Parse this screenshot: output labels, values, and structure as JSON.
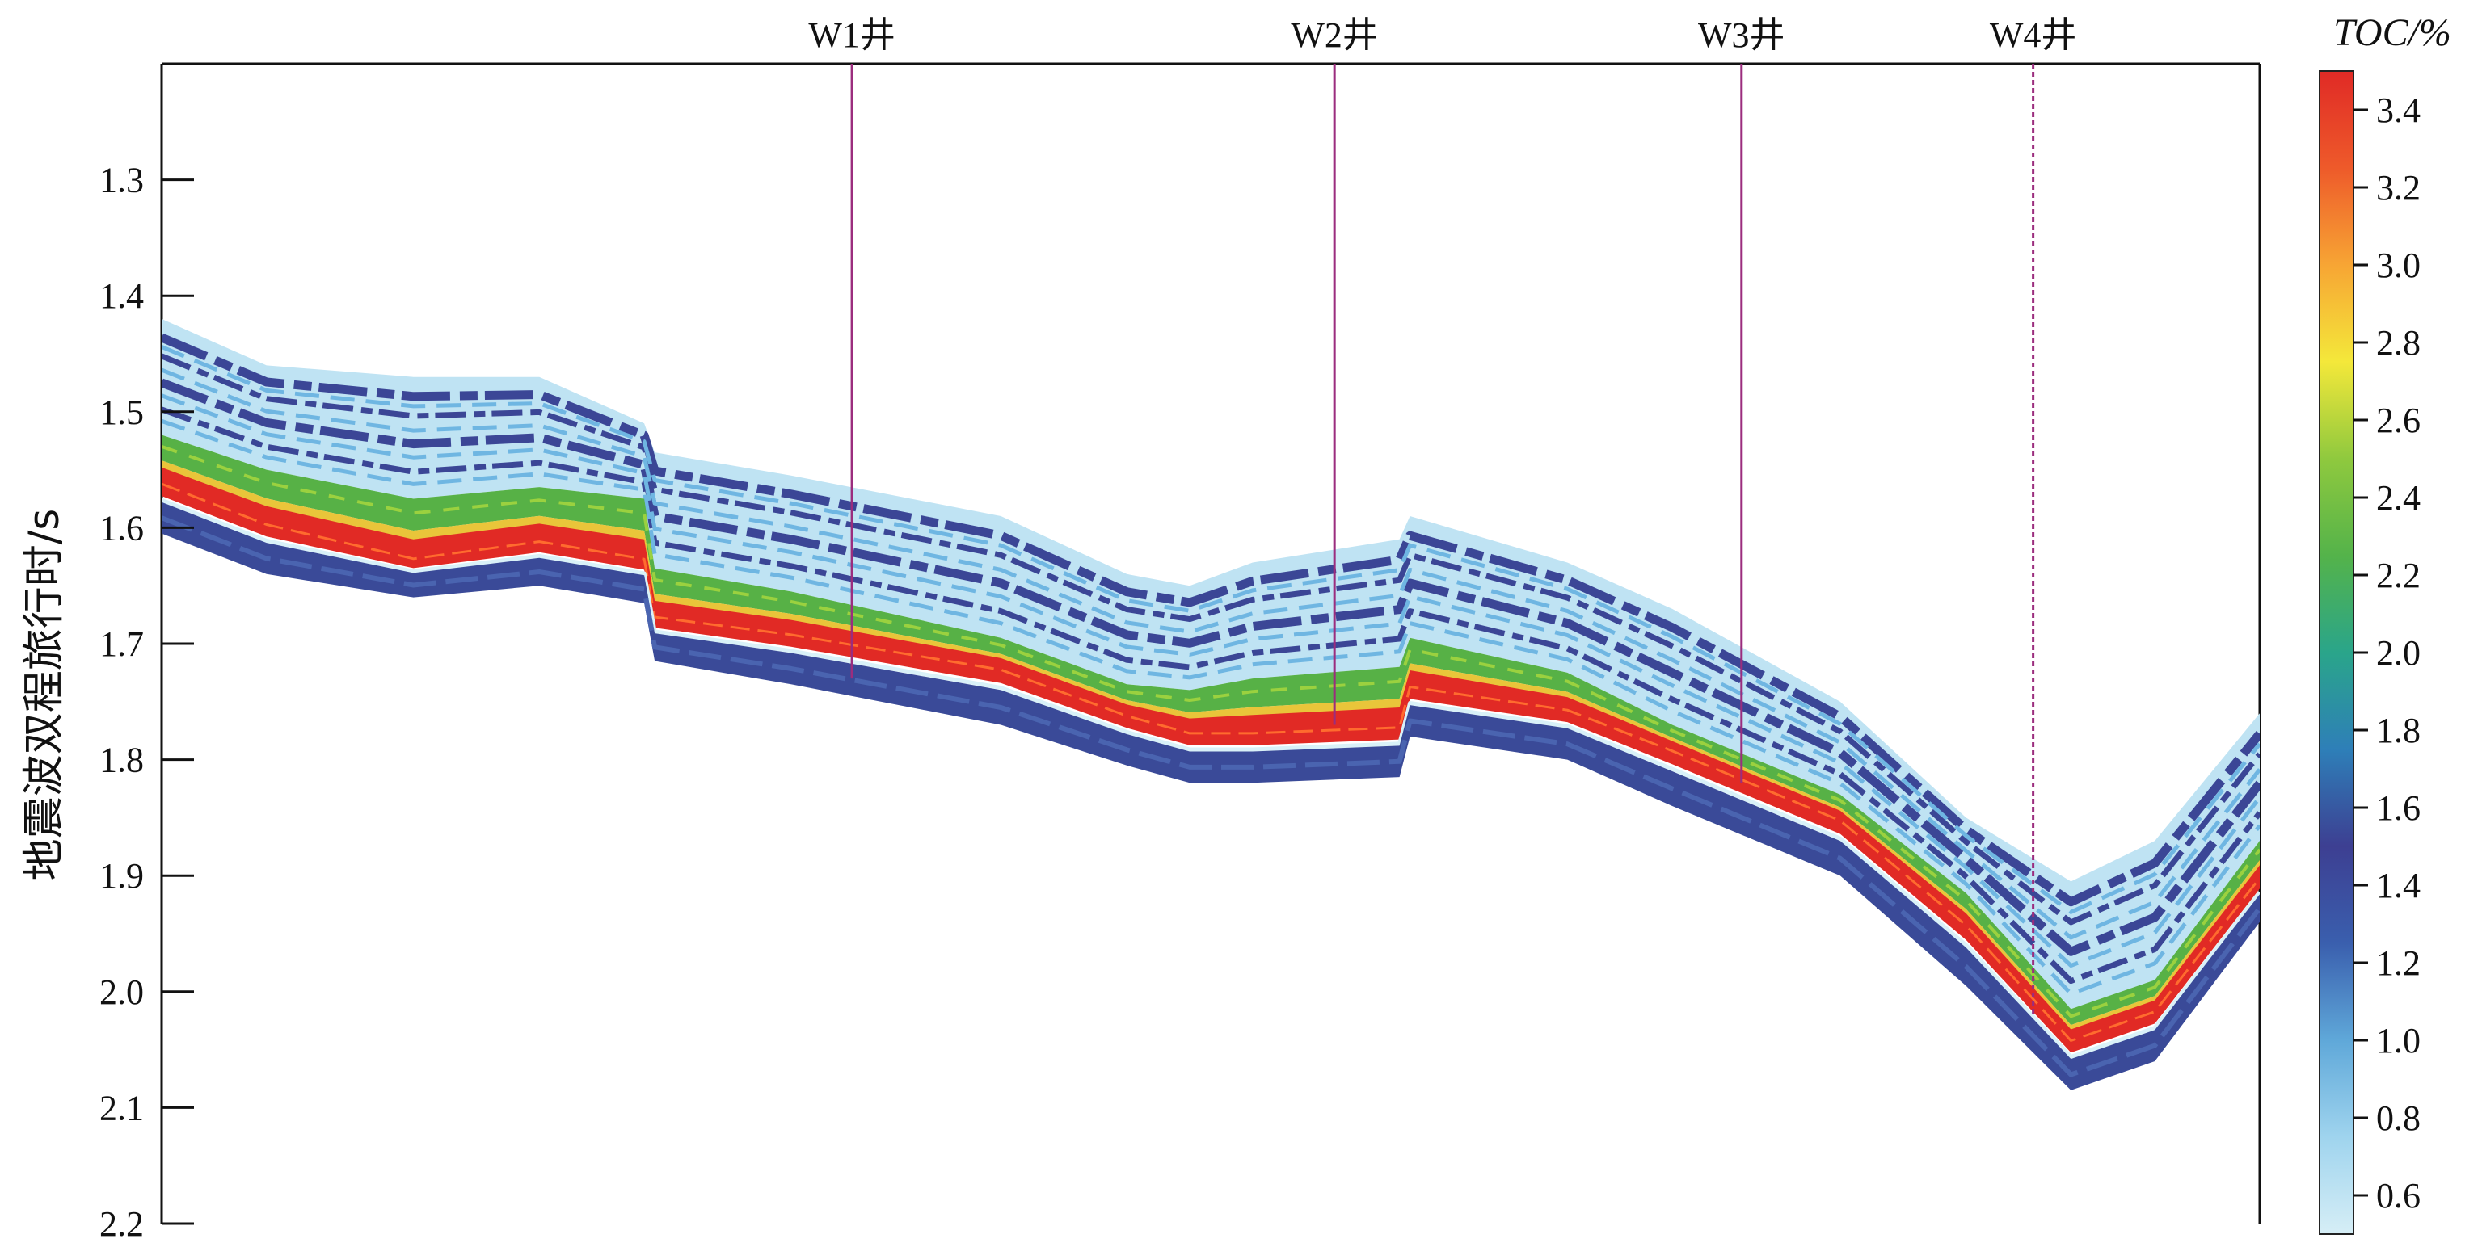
{
  "chart_data": {
    "type": "heatmap",
    "title": "",
    "xlabel": "",
    "ylabel": "地震波双程旅行时/s",
    "ylim": [
      1.2,
      2.2
    ],
    "y_ticks": [
      "1.3",
      "1.4",
      "1.5",
      "1.6",
      "1.7",
      "1.8",
      "1.9",
      "2.0",
      "2.1",
      "2.2"
    ],
    "colorbar": {
      "title": "TOC/%",
      "range": [
        0.5,
        3.5
      ],
      "ticks": [
        "3.4",
        "3.2",
        "3.0",
        "2.8",
        "2.6",
        "2.4",
        "2.2",
        "2.0",
        "1.8",
        "1.6",
        "1.4",
        "1.2",
        "1.0",
        "0.8",
        "0.6"
      ],
      "colors": [
        "#d6eef6",
        "#9fd4ee",
        "#5fa8d9",
        "#3a5fae",
        "#3d3f92",
        "#2e7fb8",
        "#2aa58a",
        "#54b34a",
        "#8fc93e",
        "#f4e83a",
        "#f7a534",
        "#ee5a2a",
        "#e02a26"
      ]
    },
    "wells": [
      {
        "name": "W1井",
        "trace": 0.329,
        "top_time": 1.2,
        "bottom_time": 1.73
      },
      {
        "name": "W2井",
        "trace": 0.559,
        "top_time": 1.2,
        "bottom_time": 1.77
      },
      {
        "name": "W3井",
        "trace": 0.753,
        "top_time": 1.2,
        "bottom_time": 1.82
      },
      {
        "name": "W4井",
        "trace": 0.892,
        "top_time": 1.2,
        "bottom_time": 2.02
      }
    ],
    "section": {
      "trace": [
        0.0,
        0.05,
        0.12,
        0.18,
        0.23,
        0.235,
        0.3,
        0.4,
        0.46,
        0.49,
        0.52,
        0.59,
        0.595,
        0.67,
        0.72,
        0.8,
        0.86,
        0.91,
        0.95,
        1.0
      ],
      "top": [
        1.42,
        1.46,
        1.47,
        1.47,
        1.51,
        1.535,
        1.555,
        1.59,
        1.64,
        1.65,
        1.63,
        1.61,
        1.59,
        1.63,
        1.67,
        1.75,
        1.85,
        1.905,
        1.87,
        1.76
      ],
      "green": [
        1.52,
        1.55,
        1.575,
        1.565,
        1.575,
        1.635,
        1.655,
        1.695,
        1.735,
        1.74,
        1.73,
        1.72,
        1.695,
        1.725,
        1.77,
        1.83,
        1.915,
        2.015,
        1.99,
        1.87
      ],
      "red": [
        1.56,
        1.595,
        1.625,
        1.61,
        1.625,
        1.675,
        1.69,
        1.72,
        1.76,
        1.775,
        1.775,
        1.77,
        1.735,
        1.755,
        1.79,
        1.85,
        1.94,
        2.04,
        2.015,
        1.9
      ],
      "bottom": [
        1.605,
        1.64,
        1.66,
        1.65,
        1.665,
        1.715,
        1.735,
        1.77,
        1.805,
        1.82,
        1.82,
        1.815,
        1.78,
        1.8,
        1.84,
        1.9,
        1.995,
        2.085,
        2.06,
        1.94
      ]
    }
  }
}
